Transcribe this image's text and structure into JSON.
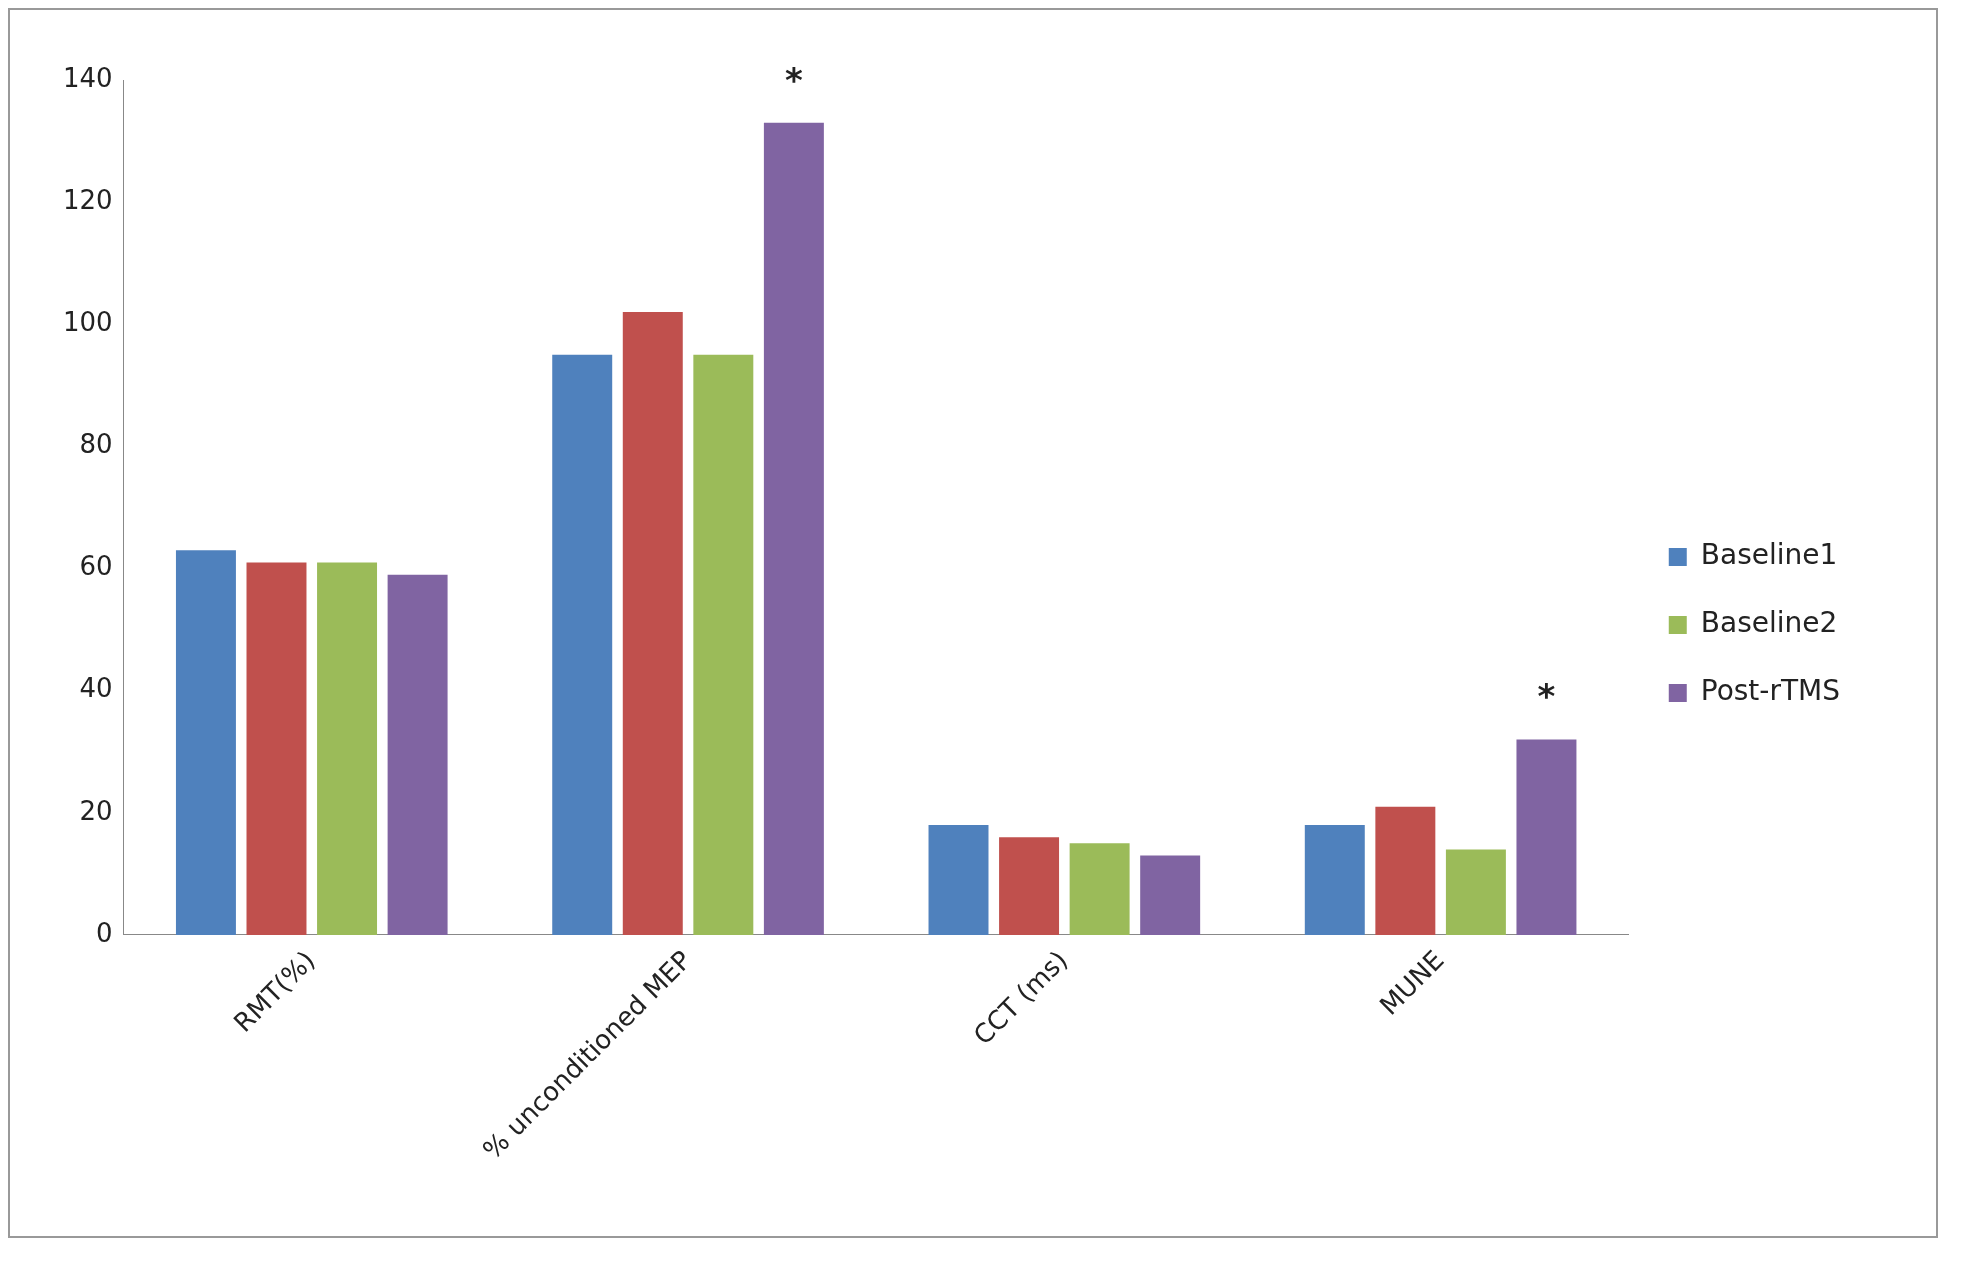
{
  "chart_data": {
    "type": "bar",
    "categories": [
      "RMT(%)",
      "% unconditioned MEP",
      "CCT (ms)",
      "MUNE"
    ],
    "series": [
      {
        "name": "Baseline1",
        "color": "#4f81bd",
        "values": [
          63,
          95,
          18,
          18
        ]
      },
      {
        "color": "#c0504d",
        "values": [
          61,
          102,
          16,
          21
        ]
      },
      {
        "name": "Baseline2",
        "color": "#9bbb59",
        "values": [
          61,
          95,
          15,
          14
        ]
      },
      {
        "name": "Post-rTMS",
        "color": "#8064a2",
        "values": [
          59,
          133,
          13,
          32
        ]
      }
    ],
    "ylim": [
      0,
      140
    ],
    "yticks": [
      0,
      20,
      40,
      60,
      80,
      100,
      120,
      140
    ],
    "grid": false,
    "legend": "right",
    "annotations": [
      "*",
      "*"
    ]
  }
}
